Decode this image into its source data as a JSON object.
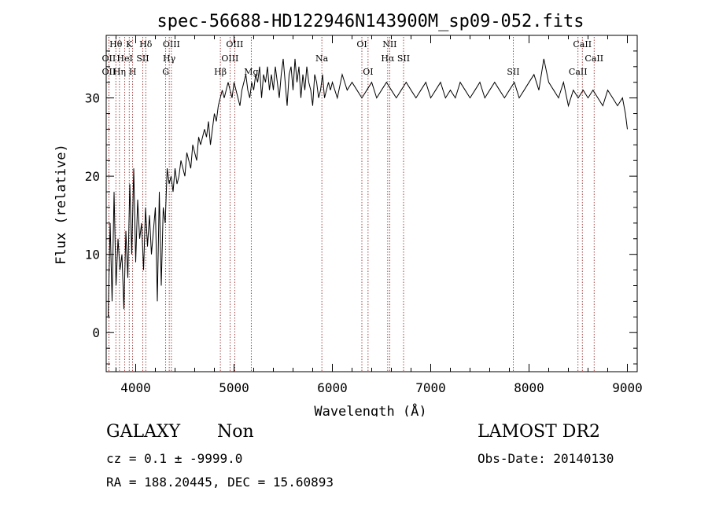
{
  "chart_data": {
    "type": "line",
    "title": "spec-56688-HD122946N143900M_sp09-052.fits",
    "xlabel": "Wavelength (Å)",
    "ylabel": "Flux (relative)",
    "xlim": [
      3700,
      9100
    ],
    "ylim": [
      -5,
      38
    ],
    "xticks": [
      4000,
      5000,
      6000,
      7000,
      8000,
      9000
    ],
    "yticks": [
      0,
      10,
      20,
      30
    ],
    "grid": false,
    "line_color": "#000000",
    "marker_color": "#8b1a1a",
    "series": [
      {
        "x": [
          3720,
          3740,
          3760,
          3780,
          3800,
          3820,
          3840,
          3860,
          3880,
          3900,
          3920,
          3940,
          3960,
          3980,
          4000,
          4020,
          4040,
          4060,
          4080,
          4100,
          4120,
          4140,
          4160,
          4180,
          4200,
          4220,
          4240,
          4260,
          4280,
          4300,
          4320,
          4340,
          4360,
          4380,
          4400,
          4420,
          4440,
          4460,
          4480,
          4500,
          4520,
          4540,
          4560,
          4580,
          4600,
          4620,
          4640,
          4660,
          4680,
          4700,
          4720,
          4740,
          4760,
          4780,
          4800,
          4820,
          4840,
          4860,
          4880,
          4900,
          4920,
          4940,
          4960,
          4980,
          5000,
          5020,
          5040,
          5060,
          5080,
          5100,
          5120,
          5140,
          5160,
          5180,
          5200,
          5220,
          5240,
          5260,
          5280,
          5300,
          5320,
          5340,
          5360,
          5380,
          5400,
          5420,
          5440,
          5460,
          5480,
          5500,
          5520,
          5540,
          5560,
          5580,
          5600,
          5620,
          5640,
          5660,
          5680,
          5700,
          5720,
          5740,
          5760,
          5780,
          5800,
          5820,
          5840,
          5860,
          5880,
          5900,
          5920,
          5940,
          5960,
          5980,
          6000,
          6050,
          6100,
          6150,
          6200,
          6250,
          6300,
          6350,
          6400,
          6450,
          6500,
          6550,
          6600,
          6650,
          6700,
          6750,
          6800,
          6850,
          6900,
          6950,
          7000,
          7050,
          7100,
          7150,
          7200,
          7250,
          7300,
          7350,
          7400,
          7450,
          7500,
          7550,
          7600,
          7650,
          7700,
          7750,
          7800,
          7850,
          7900,
          7950,
          8000,
          8050,
          8100,
          8150,
          8200,
          8250,
          8300,
          8350,
          8400,
          8450,
          8500,
          8550,
          8600,
          8650,
          8700,
          8750,
          8800,
          8850,
          8900,
          8950,
          8980,
          9000
        ],
        "y": [
          2,
          14,
          4,
          18,
          6,
          12,
          8,
          10,
          3,
          13,
          7,
          19,
          10,
          21,
          9,
          17,
          12,
          14,
          8,
          16,
          11,
          15,
          10,
          13,
          16,
          4,
          18,
          6,
          16,
          14,
          21,
          19,
          20,
          18,
          21,
          19,
          20,
          22,
          21,
          20,
          23,
          22,
          21,
          24,
          23,
          22,
          25,
          24,
          25,
          26,
          25,
          27,
          24,
          26,
          28,
          27,
          29,
          30,
          31,
          30,
          31,
          32,
          31,
          30,
          32,
          31,
          30,
          29,
          31,
          32,
          33,
          31,
          30,
          32,
          31,
          33,
          32,
          34,
          30,
          33,
          32,
          34,
          31,
          33,
          31,
          34,
          32,
          30,
          33,
          35,
          32,
          29,
          33,
          34,
          31,
          35,
          32,
          34,
          30,
          33,
          31,
          34,
          32,
          31,
          29,
          33,
          32,
          30,
          31,
          33,
          30,
          31,
          32,
          31,
          32,
          30,
          33,
          31,
          32,
          31,
          30,
          31,
          32,
          30,
          31,
          32,
          31,
          30,
          31,
          32,
          31,
          30,
          31,
          32,
          30,
          31,
          32,
          30,
          31,
          30,
          32,
          31,
          30,
          31,
          32,
          30,
          31,
          32,
          31,
          30,
          31,
          32,
          30,
          31,
          32,
          33,
          31,
          35,
          32,
          31,
          30,
          32,
          29,
          31,
          30,
          31,
          30,
          31,
          30,
          29,
          31,
          30,
          29,
          30,
          28,
          26
        ]
      }
    ],
    "lines": [
      {
        "label": "Hθ",
        "x": 3798,
        "row": 0
      },
      {
        "label": "OII",
        "x": 3727,
        "row": 1
      },
      {
        "label": "OII",
        "x": 3727,
        "row": 2
      },
      {
        "label": "HeI",
        "x": 3889,
        "row": 1
      },
      {
        "label": "Hη",
        "x": 3835,
        "row": 2
      },
      {
        "label": "K",
        "x": 3934,
        "row": 0
      },
      {
        "label": "H",
        "x": 3969,
        "row": 2
      },
      {
        "label": "SII",
        "x": 4072,
        "row": 1
      },
      {
        "label": "Hδ",
        "x": 4102,
        "row": 0
      },
      {
        "label": "OIII",
        "x": 4363,
        "row": 0
      },
      {
        "label": "Hγ",
        "x": 4341,
        "row": 1
      },
      {
        "label": "G",
        "x": 4305,
        "row": 2
      },
      {
        "label": "Hβ",
        "x": 4861,
        "row": 2
      },
      {
        "label": "OIII",
        "x": 5007,
        "row": 0
      },
      {
        "label": "OIII",
        "x": 4959,
        "row": 1
      },
      {
        "label": "Mg",
        "x": 5175,
        "row": 2
      },
      {
        "label": "Na",
        "x": 5893,
        "row": 1
      },
      {
        "label": "OI",
        "x": 6300,
        "row": 0
      },
      {
        "label": "OI",
        "x": 6363,
        "row": 2
      },
      {
        "label": "NII",
        "x": 6583,
        "row": 0
      },
      {
        "label": "Hα",
        "x": 6563,
        "row": 1
      },
      {
        "label": "SII",
        "x": 6724,
        "row": 1
      },
      {
        "label": "SII",
        "x": 7840,
        "row": 2
      },
      {
        "label": "CaII",
        "x": 8542,
        "row": 0
      },
      {
        "label": "CaII",
        "x": 8662,
        "row": 1
      },
      {
        "label": "CaII",
        "x": 8498,
        "row": 2
      }
    ]
  },
  "footer": {
    "class": "GALAXY",
    "subclass": "Non",
    "survey": "LAMOST DR2",
    "cz": "cz = 0.1 ± -9999.0",
    "radec": "RA = 188.20445, DEC =  15.60893",
    "obsdate": "Obs-Date: 20140130"
  }
}
